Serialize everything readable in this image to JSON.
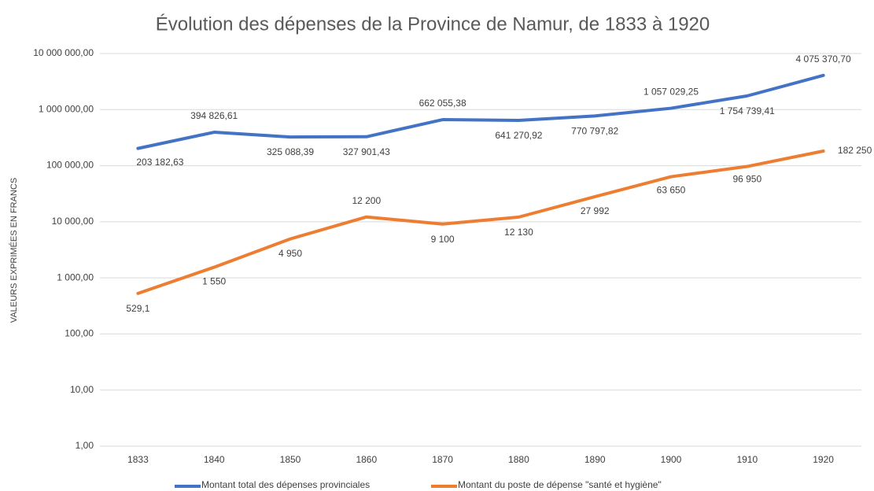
{
  "chart_data": {
    "type": "line",
    "title": "Évolution des dépenses de la Province de Namur, de 1833 à 1920",
    "y_label": "VALEURS EXPRIMÉES EN FRANCS",
    "categories": [
      "1833",
      "1840",
      "1850",
      "1860",
      "1870",
      "1880",
      "1890",
      "1900",
      "1910",
      "1920"
    ],
    "series": [
      {
        "name": "Montant total des dépenses provinciales",
        "color": "#4472c4",
        "values": [
          203182.63,
          394826.61,
          325088.39,
          327901.43,
          662055.38,
          641270.92,
          770797.82,
          1057029.25,
          1754739.41,
          4075370.7
        ],
        "value_labels": [
          "203 182,63",
          "394 826,61",
          "325 088,39",
          "327 901,43",
          "662 055,38",
          "641 270,92",
          "770 797,82",
          "1 057 029,25",
          "1 754 739,41",
          "4 075 370,70"
        ]
      },
      {
        "name": "Montant du poste de dépense \"santé et hygiène\"",
        "color": "#ed7d31",
        "values": [
          529.1,
          1550,
          4950,
          12200,
          9100,
          12130,
          27992,
          63650,
          96950,
          182250
        ],
        "value_labels": [
          "529,1",
          "1 550",
          "4 950",
          "12 200",
          "9 100",
          "12 130",
          "27 992",
          "63 650",
          "96 950",
          "182 250"
        ]
      }
    ],
    "log_scale": true,
    "ylim": [
      1,
      10000000
    ],
    "yticks": [
      {
        "value": 1,
        "label": "1,00"
      },
      {
        "value": 10,
        "label": "10,00"
      },
      {
        "value": 100,
        "label": "100,00"
      },
      {
        "value": 1000,
        "label": "1 000,00"
      },
      {
        "value": 10000,
        "label": "10 000,00"
      },
      {
        "value": 100000,
        "label": "100 000,00"
      },
      {
        "value": 1000000,
        "label": "1 000 000,00"
      },
      {
        "value": 10000000,
        "label": "10 000 000,00"
      }
    ],
    "grid": true,
    "legend": "bottom"
  }
}
